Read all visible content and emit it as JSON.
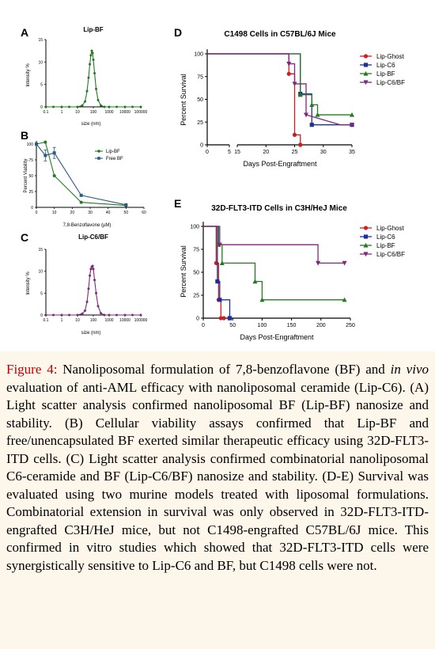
{
  "panels": {
    "A": {
      "letter": "A",
      "title": "Lip-BF",
      "ylabel": "Intensity %",
      "xlabel": "size (nm)"
    },
    "B": {
      "letter": "B",
      "ylabel": "Percent Viability",
      "xlabel": "7,8-Benzoflavone (µM)"
    },
    "C": {
      "letter": "C",
      "title": "Lip-C6/BF",
      "ylabel": "Intensity %",
      "xlabel": "size (nm)"
    },
    "D": {
      "letter": "D",
      "title": "C1498 Cells in C57BL/6J Mice",
      "ylabel": "Percent Survival",
      "xlabel": "Days Post-Engraftment"
    },
    "E": {
      "letter": "E",
      "title": "32D-FLT3-ITD Cells in C3H/HeJ Mice",
      "ylabel": "Percent Survival",
      "xlabel": "Days Post-Engraftment"
    }
  },
  "caption": {
    "label": "Figure 4:",
    "t1": " Nanoliposomal formulation of 7,8-benzoflavone (BF) and ",
    "italic": "in vivo",
    "t2": " evaluation of anti-AML efficacy with nanoliposomal ceramide (Lip-C6). (A) Light scatter analysis confirmed nanoliposomal BF (Lip-BF) nanosize and stability. (B) Cellular viability assays confirmed that Lip-BF and free/unencapsulated BF exerted similar therapeutic efficacy using 32D-FLT3-ITD cells. (C) Light scatter analysis confirmed combinatorial nanoliposomal C6-ceramide and BF (Lip-C6/BF) nanosize and stability. (D-E) Survival was evaluated using two murine models treated with liposomal formulations. Combinatorial extension in survival was only observed in 32D-FLT3-ITD-engrafted C3H/HeJ mice, but not C1498-engrafted C57BL/6J mice. This confirmed in vitro studies which showed that 32D-FLT3-ITD cells were synergistically sensitive to Lip-C6 and BF, but C1498 cells were not."
  },
  "colors": {
    "ghost": "#cc1f1f",
    "c6": "#1f2f99",
    "bf": "#237a23",
    "c6bf": "#7b2a7b",
    "free": "#2a5a8a"
  },
  "chart_data": [
    {
      "type": "line",
      "panel": "A",
      "title": "Lip-BF",
      "xlabel": "size (nm)",
      "ylabel": "Intensity %",
      "xscale": "log",
      "xlim": [
        0.1,
        100000
      ],
      "ylim": [
        0,
        15
      ],
      "xticks": [
        "0.1",
        "1",
        "10",
        "100",
        "1000",
        "10000",
        "100000"
      ],
      "yticks": [
        "0",
        "5",
        "10",
        "15"
      ],
      "series": [
        {
          "color": "#237a23",
          "x": [
            0.1,
            0.3,
            1,
            3,
            10,
            20,
            30,
            40,
            50,
            60,
            70,
            80,
            90,
            100,
            120,
            150,
            200,
            300,
            500,
            1000,
            3000,
            10000,
            30000,
            100000
          ],
          "y": [
            0,
            0,
            0,
            0,
            0,
            0.3,
            1.2,
            3.5,
            6.5,
            9.5,
            11.5,
            12.5,
            12,
            10.5,
            7.5,
            4,
            1.5,
            0.3,
            0,
            0,
            0,
            0,
            0,
            0
          ]
        }
      ]
    },
    {
      "type": "line",
      "panel": "B",
      "xlabel": "7,8-Benzoflavone (µM)",
      "ylabel": "Percent Viability",
      "xlim": [
        0,
        60
      ],
      "ylim": [
        0,
        100
      ],
      "xticks": [
        "0",
        "10",
        "20",
        "30",
        "40",
        "50",
        "60"
      ],
      "yticks": [
        "0",
        "25",
        "50",
        "75",
        "100"
      ],
      "legend": "top-right",
      "series": [
        {
          "name": "Lip-BF",
          "color": "#237a23",
          "marker": "circle",
          "x": [
            0,
            5,
            10,
            25,
            50
          ],
          "y": [
            100,
            103,
            50,
            8,
            3
          ]
        },
        {
          "name": "Free BF",
          "color": "#2a5a8a",
          "marker": "square",
          "x": [
            0,
            5,
            10,
            25,
            50
          ],
          "y": [
            100,
            82,
            86,
            19,
            4
          ]
        }
      ]
    },
    {
      "type": "line",
      "panel": "C",
      "title": "Lip-C6/BF",
      "xlabel": "size (nm)",
      "ylabel": "Intensity %",
      "xscale": "log",
      "xlim": [
        0.1,
        100000
      ],
      "ylim": [
        0,
        15
      ],
      "xticks": [
        "0.1",
        "1",
        "10",
        "100",
        "1000",
        "10000",
        "100000"
      ],
      "yticks": [
        "0",
        "5",
        "10",
        "15"
      ],
      "series": [
        {
          "color": "#7b2a7b",
          "x": [
            0.1,
            0.3,
            1,
            3,
            10,
            20,
            30,
            40,
            50,
            60,
            70,
            80,
            90,
            100,
            120,
            150,
            200,
            300,
            500,
            1000,
            3000,
            10000,
            30000,
            100000
          ],
          "y": [
            0,
            0,
            0,
            0,
            0,
            0.3,
            1,
            3,
            6,
            9,
            10.5,
            11,
            11.2,
            10.5,
            8,
            5,
            2,
            0.4,
            0,
            0,
            0,
            0,
            0,
            0
          ]
        }
      ]
    },
    {
      "type": "line",
      "panel": "D",
      "title": "C1498 Cells in C57BL/6J Mice",
      "xlabel": "Days Post-Engraftment",
      "ylabel": "Percent Survival",
      "xticks": [
        "0",
        "5",
        "15",
        "20",
        "25",
        "30",
        "35"
      ],
      "yticks": [
        "0",
        "25",
        "50",
        "75",
        "100"
      ],
      "ylim": [
        0,
        100
      ],
      "axis_break": [
        5,
        15
      ],
      "legend": "right",
      "series": [
        {
          "name": "Lip-Ghost",
          "color": "#cc1f1f",
          "marker": "circle",
          "x": [
            0,
            24,
            24,
            25,
            25,
            26,
            26
          ],
          "y": [
            100,
            100,
            78,
            78,
            11,
            11,
            0
          ]
        },
        {
          "name": "Lip-C6",
          "color": "#1f2f99",
          "marker": "square",
          "x": [
            0,
            26,
            26,
            28,
            28,
            30,
            30,
            35
          ],
          "y": [
            100,
            100,
            56,
            56,
            22,
            22,
            22,
            22
          ]
        },
        {
          "name": "Lip-BF",
          "color": "#237a23",
          "marker": "triangle",
          "x": [
            0,
            26,
            26,
            28,
            28,
            29,
            29,
            35
          ],
          "y": [
            100,
            100,
            55,
            55,
            44,
            44,
            33,
            33
          ]
        },
        {
          "name": "Lip-C6/BF",
          "color": "#7b2a7b",
          "marker": "triangle-down",
          "x": [
            0,
            24,
            24,
            25,
            25,
            26,
            26,
            27,
            27,
            33,
            35
          ],
          "y": [
            100,
            100,
            89,
            89,
            67,
            67,
            67,
            67,
            33,
            22,
            22
          ]
        }
      ]
    },
    {
      "type": "line",
      "panel": "E",
      "title": "32D-FLT3-ITD Cells in C3H/HeJ Mice",
      "xlabel": "Days Post-Engraftment",
      "ylabel": "Percent Survival",
      "xlim": [
        0,
        250
      ],
      "ylim": [
        0,
        100
      ],
      "xticks": [
        "0",
        "50",
        "100",
        "150",
        "200",
        "250"
      ],
      "yticks": [
        "0",
        "25",
        "50",
        "75",
        "100"
      ],
      "legend": "right",
      "series": [
        {
          "name": "Lip-Ghost",
          "color": "#cc1f1f",
          "marker": "circle",
          "x": [
            0,
            22,
            22,
            26,
            26,
            30,
            30,
            35
          ],
          "y": [
            100,
            100,
            60,
            60,
            20,
            20,
            0,
            0
          ]
        },
        {
          "name": "Lip-C6",
          "color": "#1f2f99",
          "marker": "square",
          "x": [
            0,
            24,
            24,
            28,
            28,
            45,
            45
          ],
          "y": [
            100,
            100,
            40,
            40,
            20,
            20,
            0
          ]
        },
        {
          "name": "Lip-BF",
          "color": "#237a23",
          "marker": "triangle",
          "x": [
            0,
            26,
            26,
            32,
            32,
            88,
            88,
            100,
            100,
            240
          ],
          "y": [
            100,
            100,
            80,
            80,
            60,
            60,
            40,
            40,
            20,
            20
          ]
        },
        {
          "name": "Lip-C6/BF",
          "color": "#7b2a7b",
          "marker": "triangle-down",
          "x": [
            0,
            28,
            28,
            195,
            195,
            240
          ],
          "y": [
            100,
            100,
            80,
            80,
            60,
            60
          ]
        }
      ]
    }
  ]
}
